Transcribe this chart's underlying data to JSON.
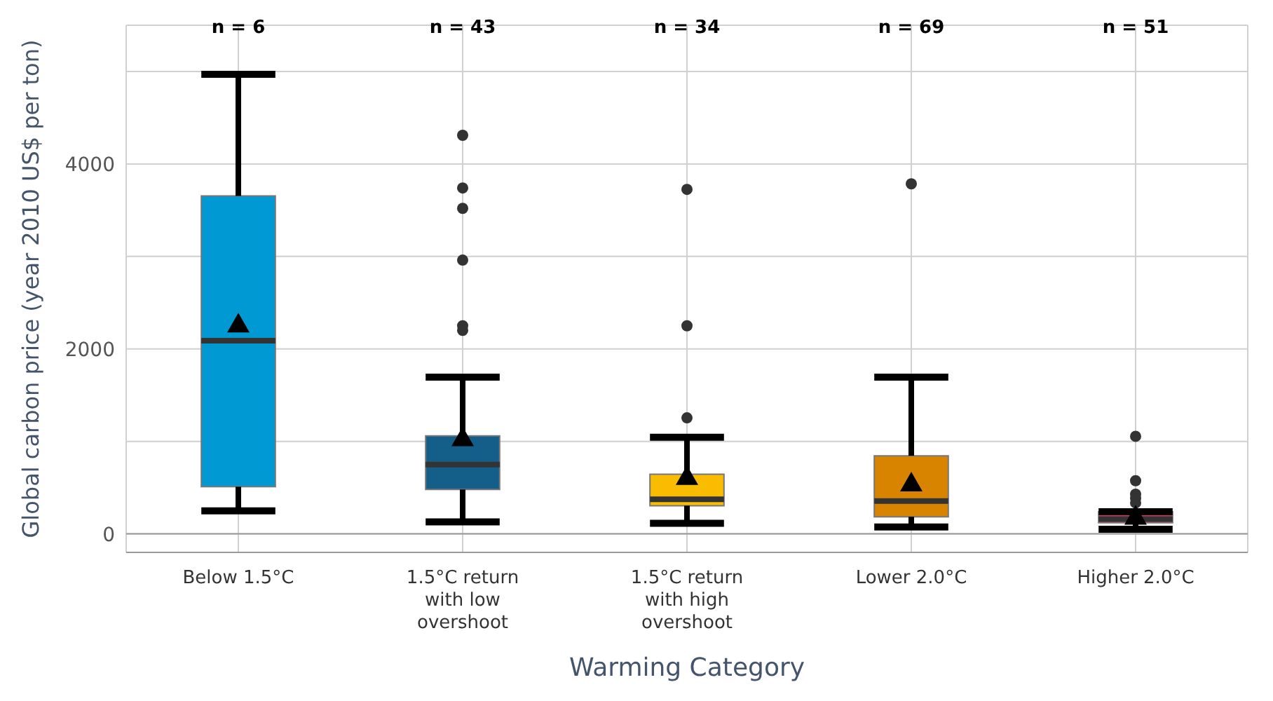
{
  "chart_data": {
    "type": "box",
    "xlabel": "Warming Category",
    "ylabel": "Global carbon price (year 2010 US$ per ton)",
    "categories": [
      "Below 1.5°C",
      "1.5°C return with low overshoot",
      "1.5°C return with high overshoot",
      "Lower 2.0°C",
      "Higher 2.0°C"
    ],
    "colors": [
      "#0099d4",
      "#135f8a",
      "#f9bc00",
      "#d88400",
      "#d6336c"
    ],
    "boxes": [
      {
        "low": 250,
        "q1": 510,
        "median": 2090,
        "q3": 3655,
        "high": 4970,
        "mean": 2270
      },
      {
        "low": 130,
        "q1": 480,
        "median": 750,
        "q3": 1060,
        "high": 1695,
        "mean": 1040,
        "outliers": [
          4310,
          3740,
          3520,
          2960,
          2250,
          2200
        ]
      },
      {
        "low": 115,
        "q1": 305,
        "median": 375,
        "q3": 645,
        "high": 1045,
        "mean": 620,
        "outliers": [
          3725,
          2250,
          1255
        ]
      },
      {
        "low": 75,
        "q1": 185,
        "median": 355,
        "q3": 845,
        "high": 1695,
        "mean": 550,
        "outliers": [
          3785
        ]
      },
      {
        "low": 50,
        "q1": 120,
        "median": 160,
        "q3": 240,
        "high": 240,
        "mean": 190,
        "outliers": [
          1055,
          575,
          430,
          385,
          335
        ]
      }
    ],
    "annotations": [
      "n = 6",
      "n = 43",
      "n = 34",
      "n = 69",
      "n = 51"
    ],
    "ylim": [
      -200,
      5500
    ],
    "yticks": [
      0,
      {
        "value": 1000,
        "label": null
      },
      2000,
      {
        "value": 3000,
        "label": null
      },
      4000,
      {
        "value": 5000,
        "label": null
      }
    ],
    "grid": true
  }
}
